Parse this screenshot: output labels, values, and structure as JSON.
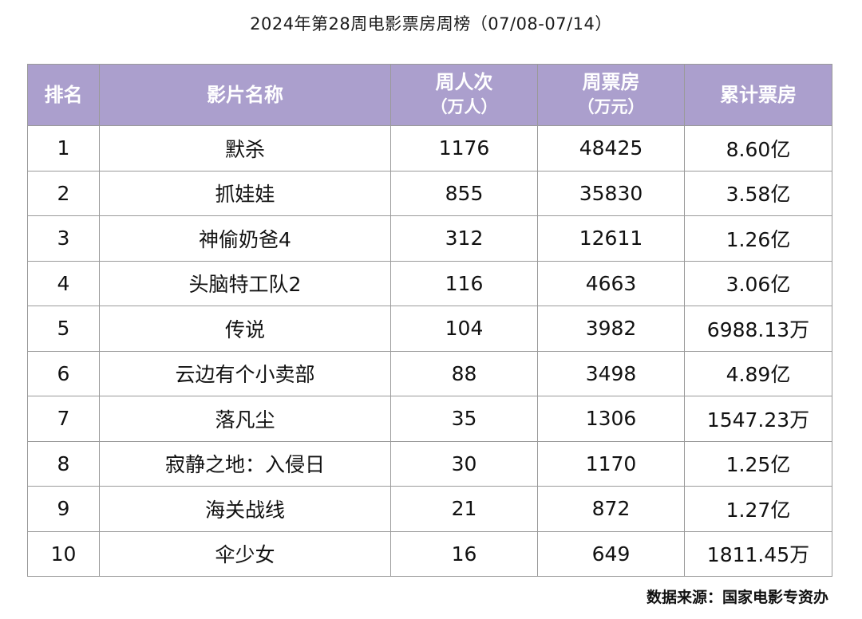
{
  "title": "2024年第28周电影票房周榜（07/08-07/14）",
  "headers": {
    "rank": "排名",
    "name": "影片名称",
    "admissions": "周人次",
    "admissions_unit": "（万人）",
    "weekly_box": "周票房",
    "weekly_box_unit": "（万元）",
    "cumulative": "累计票房"
  },
  "rows": [
    {
      "rank": "1",
      "name": "默杀",
      "admissions": "1176",
      "weekly_box": "48425",
      "cumulative": "8.60亿"
    },
    {
      "rank": "2",
      "name": "抓娃娃",
      "admissions": "855",
      "weekly_box": "35830",
      "cumulative": "3.58亿"
    },
    {
      "rank": "3",
      "name": "神偷奶爸4",
      "admissions": "312",
      "weekly_box": "12611",
      "cumulative": "1.26亿"
    },
    {
      "rank": "4",
      "name": "头脑特工队2",
      "admissions": "116",
      "weekly_box": "4663",
      "cumulative": "3.06亿"
    },
    {
      "rank": "5",
      "name": "传说",
      "admissions": "104",
      "weekly_box": "3982",
      "cumulative": "6988.13万"
    },
    {
      "rank": "6",
      "name": "云边有个小卖部",
      "admissions": "88",
      "weekly_box": "3498",
      "cumulative": "4.89亿"
    },
    {
      "rank": "7",
      "name": "落凡尘",
      "admissions": "35",
      "weekly_box": "1306",
      "cumulative": "1547.23万"
    },
    {
      "rank": "8",
      "name": "寂静之地：入侵日",
      "admissions": "30",
      "weekly_box": "1170",
      "cumulative": "1.25亿"
    },
    {
      "rank": "9",
      "name": "海关战线",
      "admissions": "21",
      "weekly_box": "872",
      "cumulative": "1.27亿"
    },
    {
      "rank": "10",
      "name": "伞少女",
      "admissions": "16",
      "weekly_box": "649",
      "cumulative": "1811.45万"
    }
  ],
  "source": "数据来源：国家电影专资办",
  "colors": {
    "header_bg": "#ab9fcd",
    "header_text": "#ffffff",
    "border": "#9a9a9a"
  }
}
